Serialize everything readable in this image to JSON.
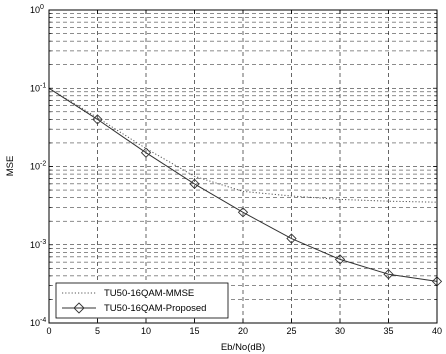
{
  "chart_data": {
    "type": "line",
    "title": "",
    "xlabel": "Eb/No(dB)",
    "ylabel": "MSE",
    "xlim": [
      0,
      40
    ],
    "ylim": [
      0.0001,
      1
    ],
    "yscale": "log",
    "grid": true,
    "legend_position": "bottom-left",
    "x_ticks": [
      "0",
      "5",
      "10",
      "15",
      "20",
      "25",
      "30",
      "35",
      "40"
    ],
    "y_ticks": [
      {
        "base": "10",
        "exp": "0"
      },
      {
        "base": "10",
        "exp": "-1"
      },
      {
        "base": "10",
        "exp": "-2"
      },
      {
        "base": "10",
        "exp": "-3"
      },
      {
        "base": "10",
        "exp": "-4"
      }
    ],
    "x": [
      0,
      5,
      10,
      15,
      20,
      25,
      30,
      35,
      40
    ],
    "series": [
      {
        "name": "TU50-16QAM-MMSE",
        "style": "dotted",
        "marker": "none",
        "color": "#555555",
        "values": [
          0.1,
          0.042,
          0.017,
          0.0075,
          0.0048,
          0.0042,
          0.0038,
          0.0036,
          0.0035
        ]
      },
      {
        "name": "TU50-16QAM-Proposed",
        "style": "solid",
        "marker": "diamond",
        "color": "#333333",
        "values": [
          0.1,
          0.04,
          0.015,
          0.006,
          0.0026,
          0.0012,
          0.00065,
          0.00042,
          0.00034
        ]
      }
    ]
  }
}
